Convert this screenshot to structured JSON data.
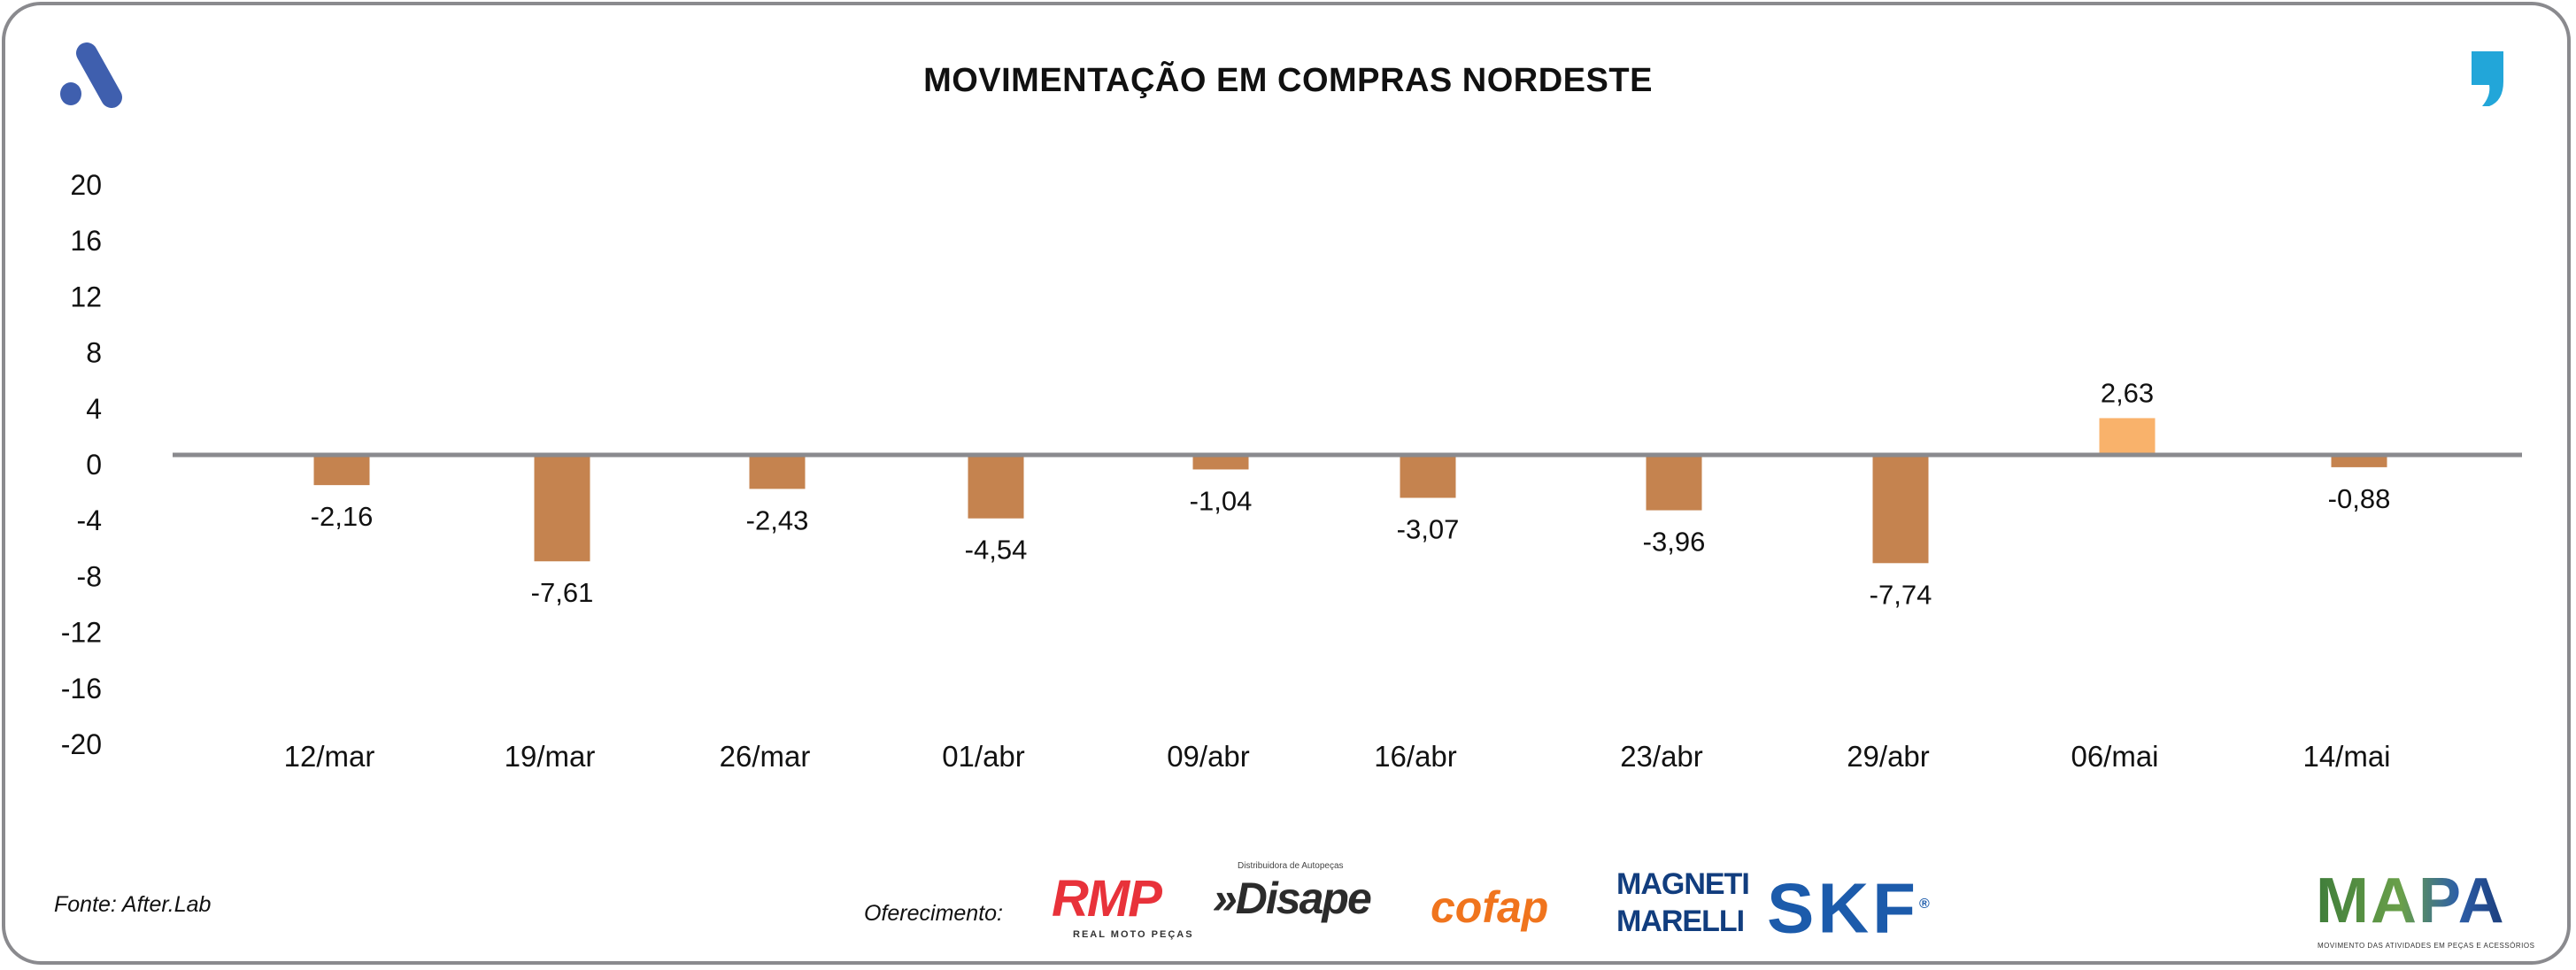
{
  "header": {
    "title": "MOVIMENTAÇÃO EM COMPRAS NORDESTE",
    "left_logo_icon": "aftermarket-a-logo",
    "right_logo_icon": "comma-logo"
  },
  "chart_data": {
    "type": "bar",
    "title": "MOVIMENTAÇÃO EM COMPRAS NORDESTE",
    "xlabel": "",
    "ylabel": "",
    "ylim": [
      -20,
      20
    ],
    "yticks": [
      20,
      16,
      12,
      8,
      4,
      0,
      -4,
      -8,
      -12,
      -16,
      -20
    ],
    "categories": [
      "12/mar",
      "19/mar",
      "26/mar",
      "01/abr",
      "09/abr",
      "16/abr",
      "23/abr",
      "29/abr",
      "06/mai",
      "14/mai"
    ],
    "values": [
      -2.16,
      -7.61,
      -2.43,
      -4.54,
      -1.04,
      -3.07,
      -3.96,
      -7.74,
      2.63,
      -0.88
    ],
    "value_labels": [
      "-2,16",
      "-7,61",
      "-2,43",
      "-4,54",
      "-1,04",
      "-3,07",
      "-3,96",
      "-7,74",
      "2,63",
      "-0,88"
    ],
    "colors": {
      "negative": "#C5834F",
      "positive": "#F9B26B",
      "zero_line": "#8a8a8e"
    },
    "grid": false,
    "legend": "none"
  },
  "footer": {
    "source": "Fonte: After.Lab",
    "sponsor_label": "Oferecimento:",
    "sponsors": {
      "rmp": "RMP",
      "rmp_sub": "REAL MOTO PEÇAS",
      "disape": "»Disape",
      "disape_sub": "Distribuidora de Autopeças",
      "cofap": "cofap",
      "magneti_1": "MAGNETI",
      "magneti_2": "MARELLI",
      "skf": "SKF",
      "mapa": "MAPA",
      "mapa_sub": "MOVIMENTO DAS ATIVIDADES EM PEÇAS E ACESSÓRIOS"
    }
  }
}
